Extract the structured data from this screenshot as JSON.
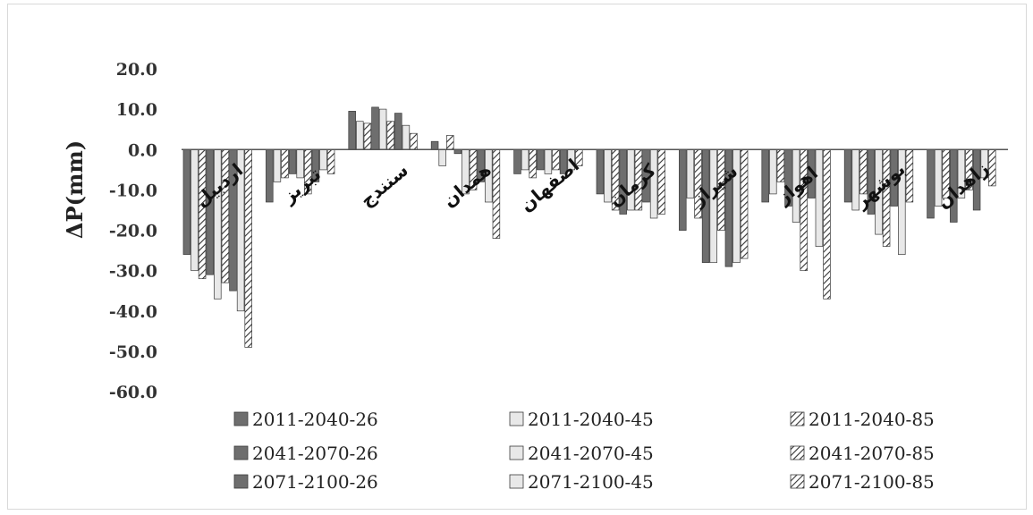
{
  "chart_data": {
    "type": "bar",
    "ylabel": "ΔP(mm)",
    "ylim": [
      -60,
      20
    ],
    "yticks": [
      "20.0",
      "10.0",
      "0.0",
      "-10.0",
      "-20.0",
      "-30.0",
      "-40.0",
      "-50.0",
      "-60.0"
    ],
    "categories": [
      "اردبیل",
      "تبریز",
      "سنندج",
      "همدان",
      "اصفهان",
      "کرمان",
      "شیراز",
      "اهواز",
      "بوشهر",
      "زاهدان"
    ],
    "series": [
      {
        "name": "2011-2040-26",
        "style": "dark",
        "values": [
          -26,
          -13,
          9.5,
          2,
          -6,
          -11,
          -20,
          -13,
          -13,
          -17
        ]
      },
      {
        "name": "2011-2040-45",
        "style": "light",
        "values": [
          -30,
          -8,
          7,
          -4,
          -5,
          -13,
          -12,
          -11,
          -15,
          -14
        ]
      },
      {
        "name": "2011-2040-85",
        "style": "hatch",
        "values": [
          -32,
          -7,
          6.5,
          3.5,
          -7,
          -15,
          -17,
          -8,
          -11,
          -12
        ]
      },
      {
        "name": "2041-2070-26",
        "style": "dark",
        "values": [
          -31,
          -6,
          10.5,
          -1,
          -5,
          -16,
          -28,
          -14,
          -16,
          -18
        ]
      },
      {
        "name": "2041-2070-45",
        "style": "light",
        "values": [
          -37,
          -7,
          10,
          -11,
          -6,
          -15,
          -28,
          -18,
          -21,
          -12
        ]
      },
      {
        "name": "2041-2070-85",
        "style": "hatch",
        "values": [
          -33,
          -11,
          7,
          -10,
          -5,
          -15,
          -20,
          -30,
          -24,
          -10
        ]
      },
      {
        "name": "2071-2100-26",
        "style": "dark",
        "values": [
          -35,
          -8,
          9,
          -8,
          -6,
          -13,
          -29,
          -12,
          -14,
          -15
        ]
      },
      {
        "name": "2071-2100-45",
        "style": "light",
        "values": [
          -40,
          -5,
          6,
          -13,
          -5,
          -17,
          -28,
          -24,
          -26,
          -7
        ]
      },
      {
        "name": "2071-2100-85",
        "style": "hatch",
        "values": [
          -49,
          -6,
          4,
          -22,
          -4,
          -16,
          -27,
          -37,
          -13,
          -9
        ]
      }
    ],
    "legend": "bottom",
    "grid": false
  },
  "colors": {
    "dark": "#6e6e6e",
    "light": "#e8e8e8",
    "hatch_line": "#333333",
    "outline": "#3a3a3a",
    "axis": "#555555"
  }
}
